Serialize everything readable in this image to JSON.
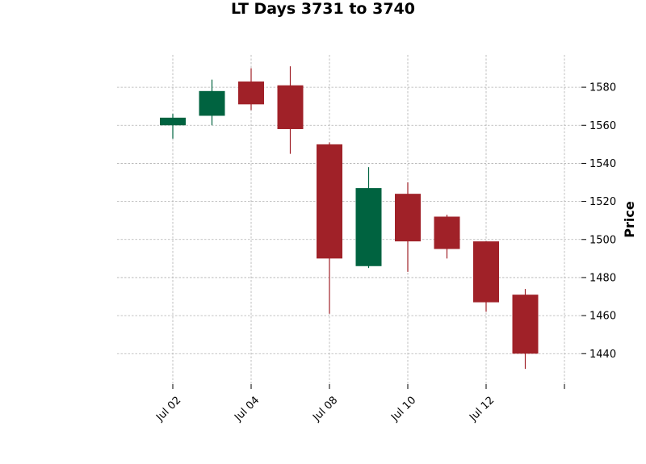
{
  "chart_data": {
    "type": "candlestick",
    "title": "LT Days 3731 to 3740",
    "ylabel": "Price",
    "xlabel": "",
    "ylim": [
      1424,
      1597
    ],
    "y_ticks": [
      1440,
      1460,
      1480,
      1500,
      1520,
      1540,
      1560,
      1580
    ],
    "x_ticks": [
      {
        "label": "Jul 02",
        "index": 0
      },
      {
        "label": "Jul 04",
        "index": 2
      },
      {
        "label": "Jul 08",
        "index": 4
      },
      {
        "label": "Jul 10",
        "index": 6
      },
      {
        "label": "Jul 12",
        "index": 8
      },
      {
        "label": "",
        "index": 10
      }
    ],
    "grid": true,
    "colors": {
      "up": "#006340",
      "down": "#a02128"
    },
    "candles": [
      {
        "date": "2024-07-02",
        "open": 1560,
        "high": 1566,
        "low": 1553,
        "close": 1564
      },
      {
        "date": "2024-07-03",
        "open": 1565,
        "high": 1584,
        "low": 1560,
        "close": 1578
      },
      {
        "date": "2024-07-04",
        "open": 1583,
        "high": 1590,
        "low": 1568,
        "close": 1571
      },
      {
        "date": "2024-07-05",
        "open": 1581,
        "high": 1591,
        "low": 1545,
        "close": 1558
      },
      {
        "date": "2024-07-08",
        "open": 1550,
        "high": 1551,
        "low": 1461,
        "close": 1490
      },
      {
        "date": "2024-07-09",
        "open": 1486,
        "high": 1538,
        "low": 1485,
        "close": 1527
      },
      {
        "date": "2024-07-10",
        "open": 1524,
        "high": 1530,
        "low": 1483,
        "close": 1499
      },
      {
        "date": "2024-07-11",
        "open": 1512,
        "high": 1513,
        "low": 1490,
        "close": 1495
      },
      {
        "date": "2024-07-12",
        "open": 1499,
        "high": 1499,
        "low": 1462,
        "close": 1467
      },
      {
        "date": "2024-07-15",
        "open": 1471,
        "high": 1474,
        "low": 1432,
        "close": 1440
      }
    ]
  }
}
